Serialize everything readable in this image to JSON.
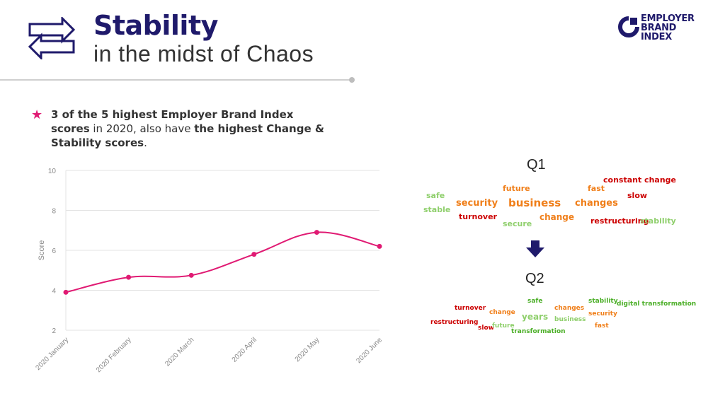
{
  "header": {
    "title": "Stability",
    "subtitle": "in the midst of Chaos"
  },
  "logo": {
    "lines": [
      "EMPLOYER",
      "BRAND",
      "INDEX"
    ],
    "icon": "employer-brand-index-logo-icon"
  },
  "header_icon": "swap-arrows-icon",
  "bullet": {
    "icon": "star-icon",
    "parts": [
      {
        "text": "3 of the 5 highest Employer Brand Index scores",
        "bold": true
      },
      {
        "text": " in 2020, also have ",
        "bold": false
      },
      {
        "text": "the highest Change & Stability scores",
        "bold": true
      },
      {
        "text": ".",
        "bold": false
      }
    ]
  },
  "colors": {
    "navy": "#1f1a6b",
    "accent": "#e01a73",
    "dark_red": "#cc0000",
    "orange": "#f07f1a",
    "light_green": "#8fcf6c",
    "green": "#4caf28"
  },
  "chart_data": {
    "type": "line",
    "x": [
      "2020 January",
      "2020 February",
      "2020 March",
      "2020 April",
      "2020 May",
      "2020 June"
    ],
    "series": [
      {
        "values": [
          3.9,
          4.65,
          4.75,
          5.8,
          6.9,
          6.2
        ]
      }
    ],
    "ylabel": "Score",
    "xlabel": "",
    "ylim": [
      2,
      10
    ],
    "yticks": [
      2,
      4,
      6,
      8,
      10
    ],
    "grid": true,
    "line_color": "#e01a73"
  },
  "wordclouds": {
    "q1": {
      "label": "Q1",
      "words": [
        {
          "text": "constant change",
          "color": "dark_red"
        },
        {
          "text": "future",
          "color": "orange"
        },
        {
          "text": "fast",
          "color": "orange"
        },
        {
          "text": "safe",
          "color": "light_green"
        },
        {
          "text": "slow",
          "color": "dark_red"
        },
        {
          "text": "security",
          "color": "orange"
        },
        {
          "text": "business",
          "color": "orange"
        },
        {
          "text": "changes",
          "color": "orange"
        },
        {
          "text": "stable",
          "color": "light_green"
        },
        {
          "text": "turnover",
          "color": "dark_red"
        },
        {
          "text": "change",
          "color": "orange"
        },
        {
          "text": "restructuring",
          "color": "dark_red"
        },
        {
          "text": "stability",
          "color": "light_green"
        },
        {
          "text": "secure",
          "color": "light_green"
        }
      ]
    },
    "arrow_icon": "arrow-down-icon",
    "q2": {
      "label": "Q2",
      "words": [
        {
          "text": "safe",
          "color": "green"
        },
        {
          "text": "stability",
          "color": "green"
        },
        {
          "text": "digital transformation",
          "color": "green"
        },
        {
          "text": "turnover",
          "color": "dark_red"
        },
        {
          "text": "changes",
          "color": "orange"
        },
        {
          "text": "change",
          "color": "orange"
        },
        {
          "text": "years",
          "color": "light_green"
        },
        {
          "text": "security",
          "color": "orange"
        },
        {
          "text": "business",
          "color": "light_green"
        },
        {
          "text": "restructuring",
          "color": "dark_red"
        },
        {
          "text": "slow",
          "color": "dark_red"
        },
        {
          "text": "future",
          "color": "light_green"
        },
        {
          "text": "fast",
          "color": "orange"
        },
        {
          "text": "transformation",
          "color": "green"
        }
      ]
    }
  }
}
